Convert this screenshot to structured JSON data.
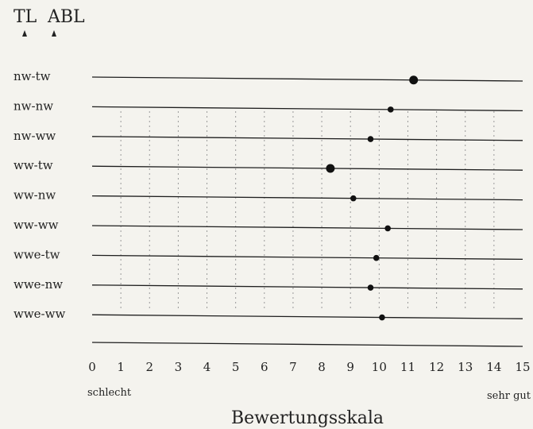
{
  "legend": {
    "items": [
      "TL",
      "ABL"
    ]
  },
  "chart_data": {
    "type": "scatter",
    "xlabel": "Bewertungsskala",
    "xlim": [
      0,
      15
    ],
    "x_ticks": [
      0,
      1,
      2,
      3,
      4,
      5,
      6,
      7,
      8,
      9,
      10,
      11,
      12,
      13,
      14,
      15
    ],
    "scale_low_label": "schlecht",
    "scale_high_label": "sehr gut",
    "categories": [
      "nw-tw",
      "nw-nw",
      "nw-ww",
      "ww-tw",
      "ww-nw",
      "ww-ww",
      "wwe-tw",
      "wwe-nw",
      "wwe-ww"
    ],
    "values": [
      11.2,
      10.4,
      9.7,
      8.3,
      9.1,
      10.3,
      9.9,
      9.7,
      10.1
    ],
    "marker_sizes": [
      "large",
      "small",
      "small",
      "large",
      "small",
      "small",
      "small",
      "small",
      "small"
    ],
    "grid": false
  }
}
